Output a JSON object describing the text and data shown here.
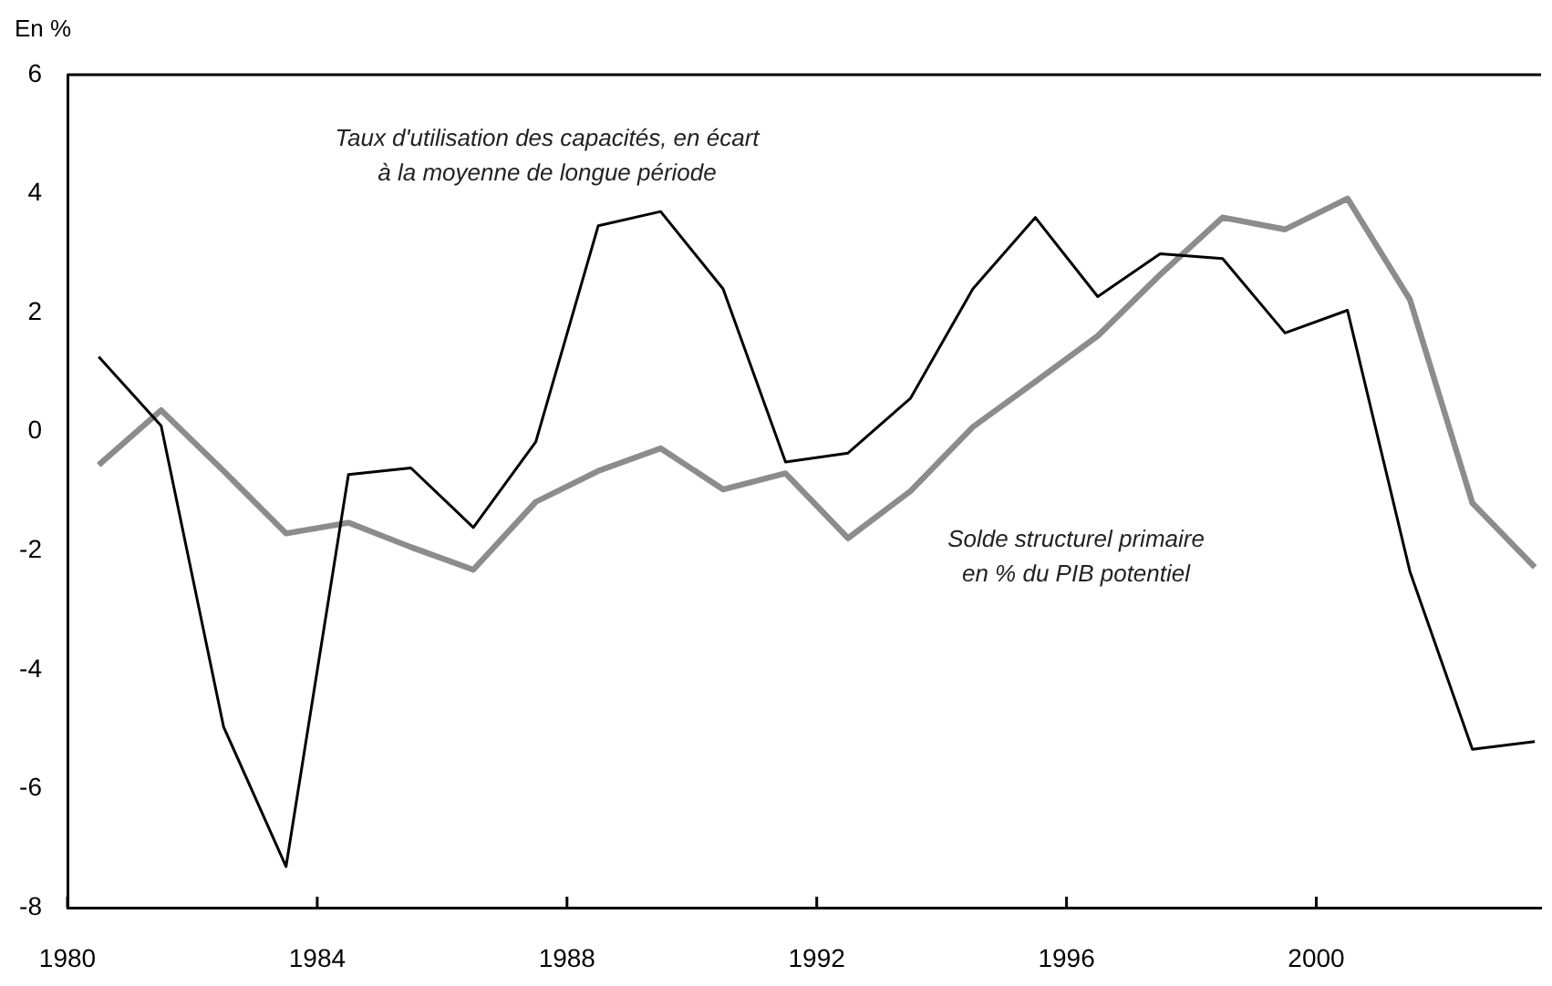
{
  "chart_data": {
    "type": "line",
    "ylabel": "En %",
    "x": [
      1980.5,
      1981.5,
      1982.5,
      1983.5,
      1984.5,
      1985.5,
      1986.5,
      1987.5,
      1988.5,
      1989.5,
      1990.5,
      1991.5,
      1992.5,
      1993.5,
      1994.5,
      1995.5,
      1996.5,
      1997.5,
      1998.5,
      1999.5,
      2000.5,
      2001.5,
      2002.5,
      2003.5
    ],
    "series": [
      {
        "color": "#000000",
        "values": [
          1.26,
          0.1,
          -4.96,
          -7.31,
          -0.72,
          -0.61,
          -1.61,
          -0.17,
          3.46,
          3.7,
          2.4,
          -0.51,
          -0.36,
          0.56,
          2.4,
          3.6,
          2.27,
          2.99,
          2.91,
          1.66,
          2.04,
          -2.35,
          -5.34,
          -5.21
        ]
      },
      {
        "color": "#8c8c8c",
        "values": [
          -0.56,
          0.36,
          -0.66,
          -1.71,
          -1.53,
          -1.94,
          -2.32,
          -1.18,
          -0.66,
          -0.28,
          -0.97,
          -0.7,
          -1.79,
          -1.0,
          0.08,
          0.84,
          1.61,
          2.64,
          3.6,
          3.4,
          3.92,
          2.22,
          -1.2,
          -2.28
        ]
      }
    ],
    "annotations": [
      "Taux d'utilisation des capacités, en écart\nà la moyenne de longue période",
      "Solde structurel primaire\nen % du PIB potentiel"
    ],
    "xlim": [
      1980,
      2003.6
    ],
    "xticks": [
      1980,
      1984,
      1988,
      1992,
      1996,
      2000
    ],
    "ylim": [
      -8,
      6
    ],
    "yticks": [
      -8,
      -6,
      -4,
      -2,
      0,
      2,
      4,
      6
    ],
    "grid": false,
    "legend": false,
    "marker": "none",
    "line_style": "solid"
  }
}
